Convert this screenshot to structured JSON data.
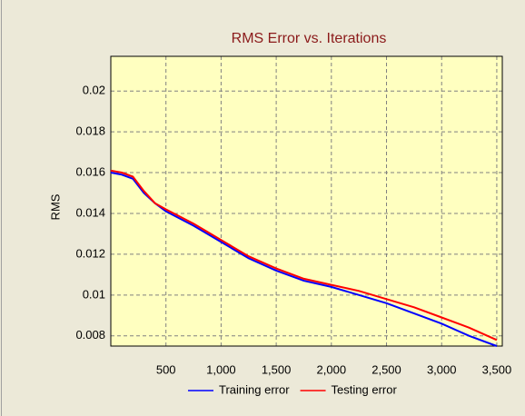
{
  "chart_data": {
    "type": "line",
    "title": "RMS Error vs. Iterations",
    "y_label": "RMS",
    "x": [
      0,
      100,
      200,
      300,
      400,
      500,
      750,
      1000,
      1250,
      1500,
      1750,
      2000,
      2250,
      2500,
      2750,
      3000,
      3250,
      3500
    ],
    "series": [
      {
        "name": "Training error",
        "color": "#0000ff",
        "values": [
          0.016,
          0.0159,
          0.0157,
          0.015,
          0.0145,
          0.0141,
          0.0134,
          0.0126,
          0.0118,
          0.0112,
          0.0107,
          0.0104,
          0.01,
          0.0096,
          0.0091,
          0.0086,
          0.008,
          0.0075
        ]
      },
      {
        "name": "Testing error",
        "color": "#ff0000",
        "values": [
          0.0161,
          0.016,
          0.0158,
          0.0151,
          0.0145,
          0.0142,
          0.0135,
          0.0127,
          0.0119,
          0.0113,
          0.0108,
          0.0105,
          0.0102,
          0.0098,
          0.0094,
          0.0089,
          0.0084,
          0.0078
        ]
      }
    ],
    "xlim": [
      0,
      3550
    ],
    "ylim": [
      0.0075,
      0.0217
    ],
    "xticks": [
      500,
      {
        "value": 1000,
        "label": "1,000"
      },
      {
        "value": 1500,
        "label": "1,500"
      },
      {
        "value": 2000,
        "label": "2,000"
      },
      {
        "value": 2500,
        "label": "2,500"
      },
      {
        "value": 3000,
        "label": "3,000"
      },
      {
        "value": 3500,
        "label": "3,500"
      }
    ],
    "yticks": [
      0.008,
      0.01,
      0.012,
      0.014,
      0.016,
      0.018,
      0.02
    ],
    "grid": true,
    "legend": "bottom",
    "plot_background": "#ffffc0"
  }
}
